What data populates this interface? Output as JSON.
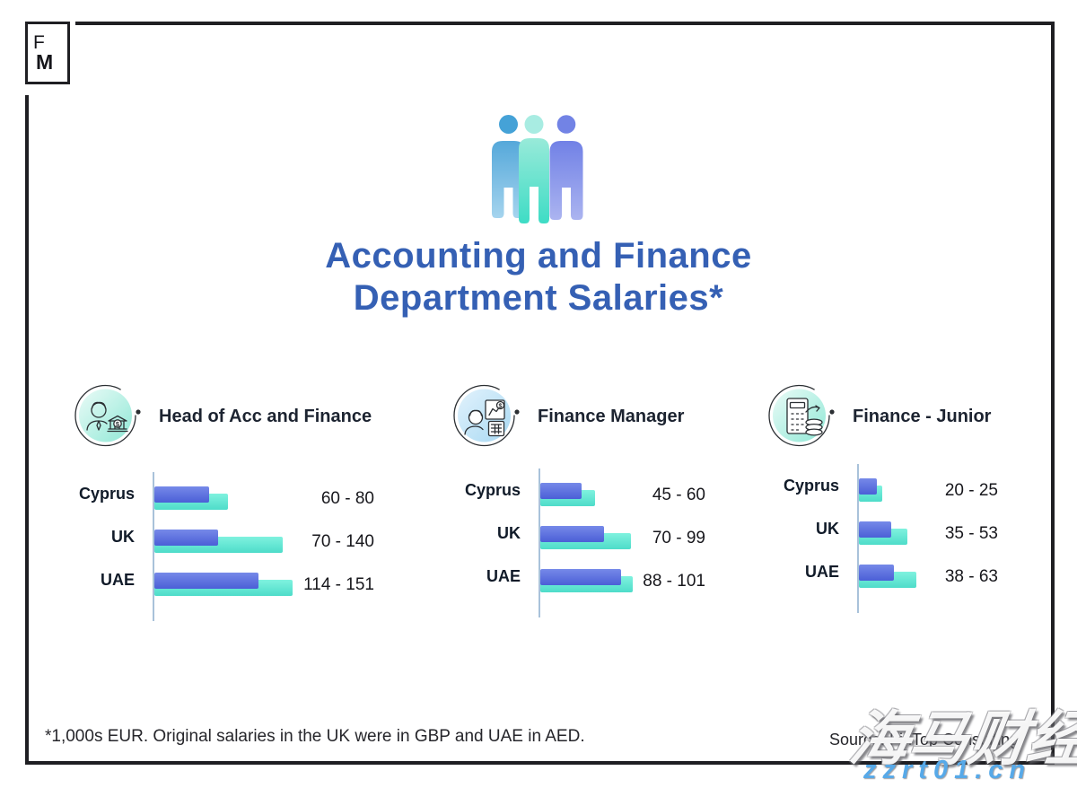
{
  "logo": {
    "letter_top": "F",
    "letter_bottom": "M"
  },
  "header": {
    "icon": "people-group-icon",
    "title_line1": "Accounting and Finance",
    "title_line2": "Department Salaries*"
  },
  "chart_data": [
    {
      "type": "bar",
      "title": "Head of Acc and Finance",
      "icon": "person-with-bank-icon",
      "orientation": "horizontal",
      "unit": "1,000s EUR",
      "categories": [
        "Cyprus",
        "UK",
        "UAE"
      ],
      "series": [
        {
          "name": "salary min",
          "values": [
            60,
            70,
            114
          ]
        },
        {
          "name": "salary max",
          "values": [
            80,
            140,
            151
          ]
        }
      ],
      "range_labels": [
        "60 - 80",
        "70 - 140",
        "114 - 151"
      ]
    },
    {
      "type": "bar",
      "title": "Finance Manager",
      "icon": "person-with-chart-icon",
      "orientation": "horizontal",
      "unit": "1,000s EUR",
      "categories": [
        "Cyprus",
        "UK",
        "UAE"
      ],
      "series": [
        {
          "name": "salary min",
          "values": [
            45,
            70,
            88
          ]
        },
        {
          "name": "salary max",
          "values": [
            60,
            99,
            101
          ]
        }
      ],
      "range_labels": [
        "45 - 60",
        "70 - 99",
        "88 - 101"
      ]
    },
    {
      "type": "bar",
      "title": "Finance - Junior",
      "icon": "calculator-with-coins-icon",
      "orientation": "horizontal",
      "unit": "1,000s EUR",
      "categories": [
        "Cyprus",
        "UK",
        "UAE"
      ],
      "series": [
        {
          "name": "salary min",
          "values": [
            20,
            35,
            38
          ]
        },
        {
          "name": "salary max",
          "values": [
            25,
            53,
            63
          ]
        }
      ],
      "range_labels": [
        "20 - 25",
        "35 - 53",
        "38 - 63"
      ]
    }
  ],
  "footer": {
    "footnote": "*1,000s EUR. Original salaries in the UK were in GBP and UAE in AED.",
    "source": "Source: FinTop Consulting"
  },
  "watermark": {
    "brand": "海马财经",
    "url": "zzrt01.cn"
  },
  "colors": {
    "border": "#1f1f23",
    "title_blue": "#3560b4",
    "bar_blue_top": "#7689e9",
    "bar_blue_bottom": "#4b5fd7",
    "bar_teal_top": "#7ff2df",
    "bar_teal_bottom": "#4edcc9",
    "axis": "#a9c2da",
    "circle_mint_light": "#eafbf7",
    "circle_mint_deep": "#90e8d6",
    "circle_blue_light": "#e2f2fc",
    "circle_blue_deep": "#a8d9f3",
    "person_blue_top": "#55a8da",
    "person_blue_bottom": "#a5d4ee",
    "person_mint_top": "#98ead9",
    "person_mint_bottom": "#3edcc5",
    "person_purple_top": "#7181e6",
    "person_purple_bottom": "#abb4f0",
    "head_blue": "#45a2d7",
    "head_mint": "#a8ece2",
    "head_purple": "#7283e5",
    "wm_blue": "#57a9e8"
  }
}
